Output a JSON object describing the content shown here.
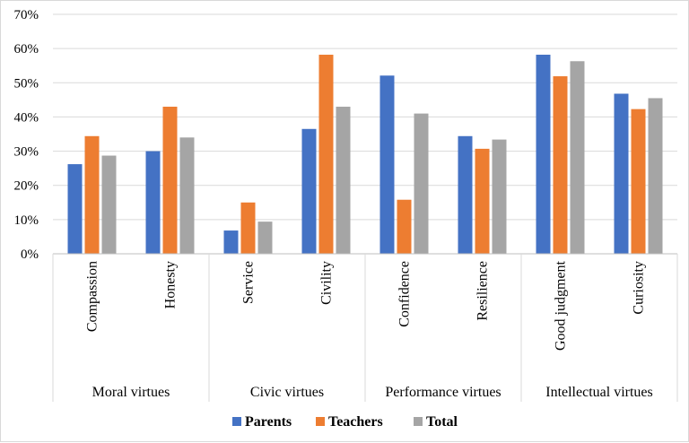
{
  "chart_data": {
    "type": "bar",
    "title": "",
    "xlabel": "",
    "ylabel": "",
    "ylim": [
      0,
      0.7
    ],
    "y_ticks": [
      0,
      0.1,
      0.2,
      0.3,
      0.4,
      0.5,
      0.6,
      0.7
    ],
    "y_tick_labels": [
      "0%",
      "10%",
      "20%",
      "30%",
      "40%",
      "50%",
      "60%",
      "70%"
    ],
    "grid": true,
    "legend_position": "bottom",
    "categories": [
      "Compassion",
      "Honesty",
      "Service",
      "Civility",
      "Confidence",
      "Resilience",
      "Good judgment",
      "Curiosity"
    ],
    "groups": [
      {
        "label": "Moral virtues",
        "categories": [
          "Compassion",
          "Honesty"
        ]
      },
      {
        "label": "Civic virtues",
        "categories": [
          "Service",
          "Civility"
        ]
      },
      {
        "label": "Performance virtues",
        "categories": [
          "Confidence",
          "Resilience"
        ]
      },
      {
        "label": "Intellectual virtues",
        "categories": [
          "Good judgment",
          "Curiosity"
        ]
      }
    ],
    "series": [
      {
        "name": "Parents",
        "color": "#4472c4",
        "values": [
          0.262,
          0.3,
          0.068,
          0.365,
          0.521,
          0.344,
          0.582,
          0.468
        ]
      },
      {
        "name": "Teachers",
        "color": "#ed7d31",
        "values": [
          0.344,
          0.43,
          0.15,
          0.582,
          0.158,
          0.307,
          0.519,
          0.423
        ]
      },
      {
        "name": "Total",
        "color": "#a5a5a5",
        "values": [
          0.287,
          0.34,
          0.094,
          0.43,
          0.41,
          0.334,
          0.563,
          0.455
        ]
      }
    ]
  }
}
